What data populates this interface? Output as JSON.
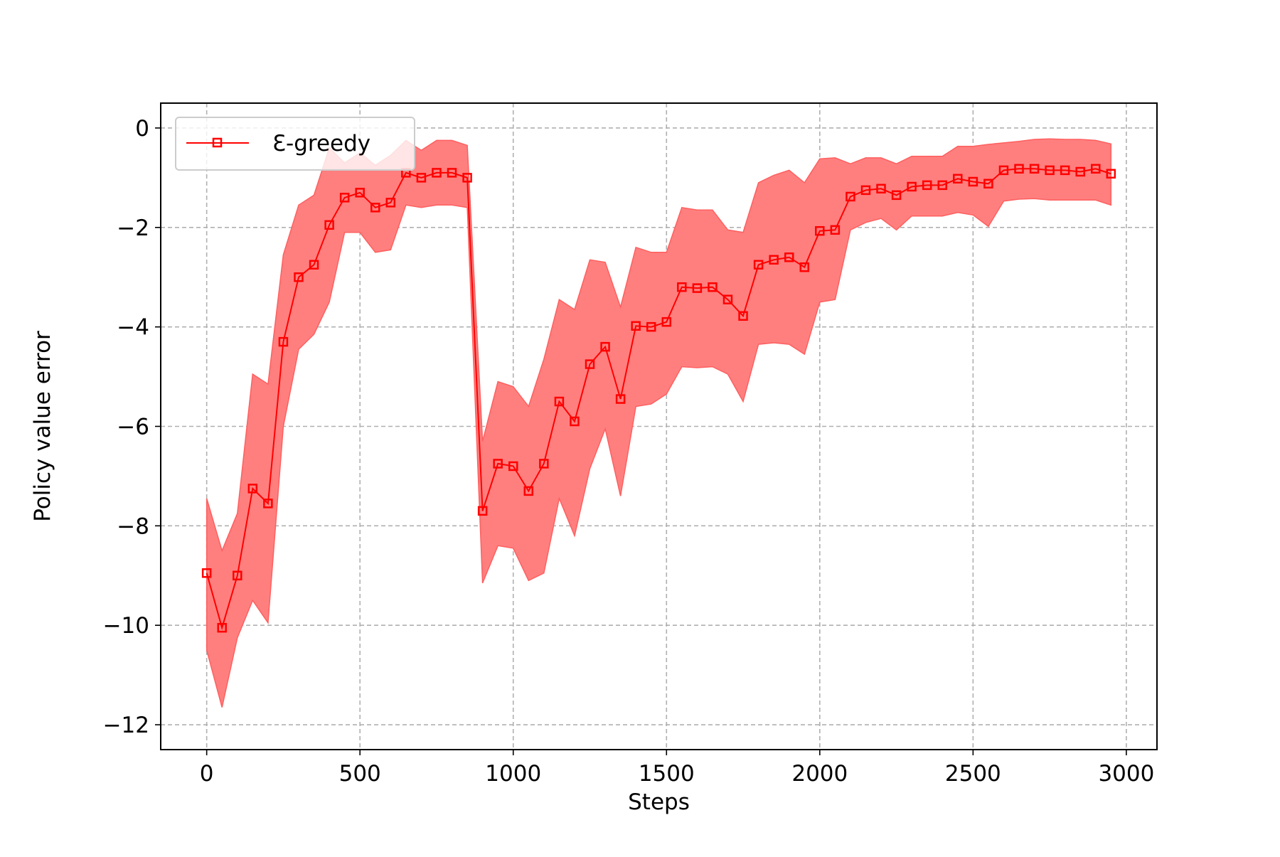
{
  "chart_data": {
    "type": "line",
    "title": "",
    "xlabel": "Steps",
    "ylabel": "Policy value error",
    "xlim": [
      -150,
      3100
    ],
    "ylim": [
      -12.5,
      0.5
    ],
    "xticks": [
      0,
      500,
      1000,
      1500,
      2000,
      2500,
      3000
    ],
    "xtick_labels": [
      "0",
      "500",
      "1000",
      "1500",
      "2000",
      "2500",
      "3000"
    ],
    "yticks": [
      0,
      -2,
      -4,
      -6,
      -8,
      -10,
      -12
    ],
    "ytick_labels": [
      "0",
      "−2",
      "−4",
      "−6",
      "−8",
      "−10",
      "−12"
    ],
    "grid": true,
    "legend_position": "upper-left",
    "series": [
      {
        "name": "Ɛ-greedy",
        "color": "#ff0000",
        "band_color": "#ff7f7f",
        "marker": "square",
        "x": [
          0,
          50,
          100,
          150,
          200,
          250,
          300,
          350,
          400,
          450,
          500,
          550,
          600,
          650,
          700,
          750,
          800,
          850,
          900,
          950,
          1000,
          1050,
          1100,
          1150,
          1200,
          1250,
          1300,
          1350,
          1400,
          1450,
          1500,
          1550,
          1600,
          1650,
          1700,
          1750,
          1800,
          1850,
          1900,
          1950,
          2000,
          2050,
          2100,
          2150,
          2200,
          2250,
          2300,
          2350,
          2400,
          2450,
          2500,
          2550,
          2600,
          2650,
          2700,
          2750,
          2800,
          2850,
          2900,
          2950
        ],
        "y": [
          -8.95,
          -10.05,
          -9.0,
          -7.25,
          -7.55,
          -4.3,
          -3.0,
          -2.75,
          -1.95,
          -1.4,
          -1.3,
          -1.6,
          -1.5,
          -0.9,
          -1.0,
          -0.9,
          -0.9,
          -1.0,
          -7.7,
          -6.75,
          -6.8,
          -7.3,
          -6.75,
          -5.5,
          -5.9,
          -4.75,
          -4.4,
          -5.45,
          -3.98,
          -4.0,
          -3.9,
          -3.2,
          -3.22,
          -3.2,
          -3.45,
          -3.78,
          -2.75,
          -2.65,
          -2.6,
          -2.8,
          -2.07,
          -2.05,
          -1.38,
          -1.25,
          -1.22,
          -1.35,
          -1.18,
          -1.15,
          -1.15,
          -1.02,
          -1.08,
          -1.12,
          -0.85,
          -0.82,
          -0.82,
          -0.85,
          -0.85,
          -0.88,
          -0.82,
          -0.92
        ],
        "upper": [
          -7.45,
          -8.5,
          -7.75,
          -4.95,
          -5.15,
          -2.55,
          -1.55,
          -1.35,
          -0.4,
          -0.7,
          -0.5,
          -0.75,
          -0.55,
          -0.25,
          -0.45,
          -0.25,
          -0.25,
          -0.35,
          -6.3,
          -5.1,
          -5.2,
          -5.6,
          -4.65,
          -3.45,
          -3.65,
          -2.65,
          -2.7,
          -3.6,
          -2.4,
          -2.5,
          -2.5,
          -1.6,
          -1.65,
          -1.65,
          -2.05,
          -2.1,
          -1.1,
          -0.95,
          -0.85,
          -1.1,
          -0.62,
          -0.6,
          -0.72,
          -0.6,
          -0.6,
          -0.72,
          -0.57,
          -0.57,
          -0.57,
          -0.37,
          -0.37,
          -0.33,
          -0.3,
          -0.27,
          -0.23,
          -0.22,
          -0.23,
          -0.23,
          -0.25,
          -0.32
        ],
        "lower": [
          -10.5,
          -11.65,
          -10.25,
          -9.5,
          -9.95,
          -6.0,
          -4.45,
          -4.15,
          -3.5,
          -2.1,
          -2.1,
          -2.5,
          -2.45,
          -1.55,
          -1.6,
          -1.55,
          -1.55,
          -1.6,
          -9.15,
          -8.4,
          -8.45,
          -9.1,
          -8.95,
          -7.45,
          -8.2,
          -6.85,
          -6.05,
          -7.4,
          -5.6,
          -5.55,
          -5.35,
          -4.8,
          -4.82,
          -4.8,
          -4.95,
          -5.5,
          -4.35,
          -4.32,
          -4.35,
          -4.55,
          -3.5,
          -3.45,
          -2.05,
          -1.9,
          -1.82,
          -2.05,
          -1.77,
          -1.77,
          -1.77,
          -1.7,
          -1.75,
          -1.98,
          -1.47,
          -1.43,
          -1.42,
          -1.45,
          -1.45,
          -1.45,
          -1.45,
          -1.55
        ]
      }
    ]
  }
}
